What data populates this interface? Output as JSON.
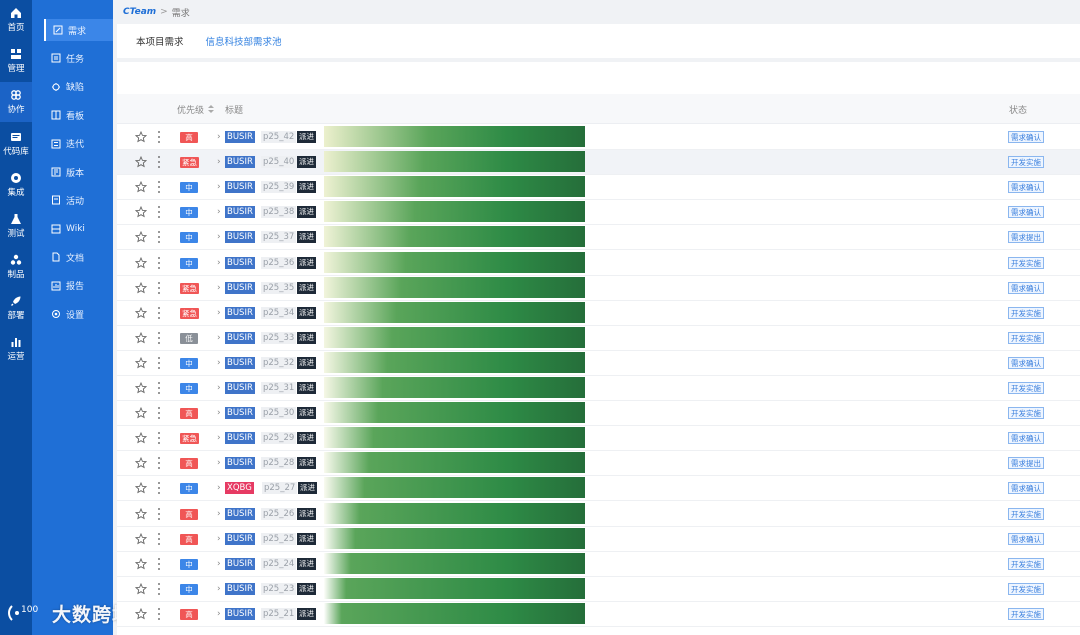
{
  "leftnav": {
    "items": [
      {
        "label": "首页",
        "icon": "home-icon"
      },
      {
        "label": "管理",
        "icon": "grid-icon"
      },
      {
        "label": "协作",
        "icon": "collaboration-icon",
        "active": true
      },
      {
        "label": "代码库",
        "icon": "code-repo-icon"
      },
      {
        "label": "集成",
        "icon": "integration-icon"
      },
      {
        "label": "测试",
        "icon": "flask-icon"
      },
      {
        "label": "制品",
        "icon": "artifact-icon"
      },
      {
        "label": "部署",
        "icon": "rocket-icon"
      },
      {
        "label": "运营",
        "icon": "bar-chart-icon"
      }
    ]
  },
  "sidebar": {
    "items": [
      {
        "label": "需求",
        "icon": "edit-icon",
        "active": true
      },
      {
        "label": "任务",
        "icon": "task-icon"
      },
      {
        "label": "缺陷",
        "icon": "bug-icon"
      },
      {
        "label": "看板",
        "icon": "board-icon"
      },
      {
        "label": "迭代",
        "icon": "iteration-icon"
      },
      {
        "label": "版本",
        "icon": "version-icon"
      },
      {
        "label": "活动",
        "icon": "activity-icon"
      },
      {
        "label": "Wiki",
        "icon": "wiki-icon"
      },
      {
        "label": "文档",
        "icon": "document-icon"
      },
      {
        "label": "报告",
        "icon": "report-icon"
      },
      {
        "label": "设置",
        "icon": "settings-icon"
      }
    ]
  },
  "watermark": {
    "text": "大数跨境"
  },
  "breadcrumb": {
    "brand": "CTeam",
    "separator": ">",
    "current": "需求"
  },
  "tabs": [
    {
      "label": "本项目需求"
    },
    {
      "label": "信息科技部需求池"
    }
  ],
  "table": {
    "headers": {
      "priority": "优先级",
      "title": "标题",
      "status": "状态"
    },
    "rows": [
      {
        "priority": "高",
        "level": "high",
        "project": "BUSIR",
        "code": "p25_42",
        "tag": "派进",
        "status": "需求确认",
        "highlight": false,
        "stop": 0.0
      },
      {
        "priority": "紧急",
        "level": "urgent",
        "project": "BUSIR",
        "code": "p25_40",
        "tag": "派进",
        "status": "开发实施",
        "highlight": true,
        "stop": 0.05
      },
      {
        "priority": "中",
        "level": "mid",
        "project": "BUSIR",
        "code": "p25_39",
        "tag": "派进",
        "status": "需求确认",
        "highlight": false,
        "stop": 0.1
      },
      {
        "priority": "中",
        "level": "mid",
        "project": "BUSIR",
        "code": "p25_38",
        "tag": "派进",
        "status": "需求确认",
        "highlight": false,
        "stop": 0.15
      },
      {
        "priority": "中",
        "level": "mid",
        "project": "BUSIR",
        "code": "p25_37",
        "tag": "派进",
        "status": "需求提出",
        "highlight": false,
        "stop": 0.2
      },
      {
        "priority": "中",
        "level": "mid",
        "project": "BUSIR",
        "code": "p25_36",
        "tag": "派进",
        "status": "开发实施",
        "highlight": false,
        "stop": 0.25
      },
      {
        "priority": "紧急",
        "level": "urgent",
        "project": "BUSIR",
        "code": "p25_35",
        "tag": "派进",
        "status": "需求确认",
        "highlight": false,
        "stop": 0.3
      },
      {
        "priority": "紧急",
        "level": "urgent",
        "project": "BUSIR",
        "code": "p25_34",
        "tag": "派进",
        "status": "开发实施",
        "highlight": false,
        "stop": 0.35
      },
      {
        "priority": "低",
        "level": "low",
        "project": "BUSIR",
        "code": "p25_33",
        "tag": "派进",
        "status": "开发实施",
        "highlight": false,
        "stop": 0.4
      },
      {
        "priority": "中",
        "level": "mid",
        "project": "BUSIR",
        "code": "p25_32",
        "tag": "派进",
        "status": "需求确认",
        "highlight": false,
        "stop": 0.45
      },
      {
        "priority": "中",
        "level": "mid",
        "project": "BUSIR",
        "code": "p25_31",
        "tag": "派进",
        "status": "开发实施",
        "highlight": false,
        "stop": 0.5
      },
      {
        "priority": "高",
        "level": "high",
        "project": "BUSIR",
        "code": "p25_30",
        "tag": "派进",
        "status": "开发实施",
        "highlight": false,
        "stop": 0.55
      },
      {
        "priority": "紧急",
        "level": "urgent",
        "project": "BUSIR",
        "code": "p25_29",
        "tag": "派进",
        "status": "需求确认",
        "highlight": false,
        "stop": 0.6
      },
      {
        "priority": "高",
        "level": "high",
        "project": "BUSIR",
        "code": "p25_28",
        "tag": "派进",
        "status": "需求提出",
        "highlight": false,
        "stop": 0.65
      },
      {
        "priority": "中",
        "level": "mid",
        "project": "XQBG",
        "code": "p25_27",
        "tag": "派进",
        "status": "需求确认",
        "highlight": false,
        "stop": 0.7
      },
      {
        "priority": "高",
        "level": "high",
        "project": "BUSIR",
        "code": "p25_26",
        "tag": "派进",
        "status": "开发实施",
        "highlight": false,
        "stop": 0.75
      },
      {
        "priority": "高",
        "level": "high",
        "project": "BUSIR",
        "code": "p25_25",
        "tag": "派进",
        "status": "需求确认",
        "highlight": false,
        "stop": 0.8
      },
      {
        "priority": "中",
        "level": "mid",
        "project": "BUSIR",
        "code": "p25_24",
        "tag": "派进",
        "status": "开发实施",
        "highlight": false,
        "stop": 0.85
      },
      {
        "priority": "中",
        "level": "mid",
        "project": "BUSIR",
        "code": "p25_23",
        "tag": "派进",
        "status": "开发实施",
        "highlight": false,
        "stop": 0.9
      },
      {
        "priority": "高",
        "level": "high",
        "project": "BUSIR",
        "code": "p25_21",
        "tag": "派进",
        "status": "开发实施",
        "highlight": false,
        "stop": 0.95
      }
    ]
  }
}
